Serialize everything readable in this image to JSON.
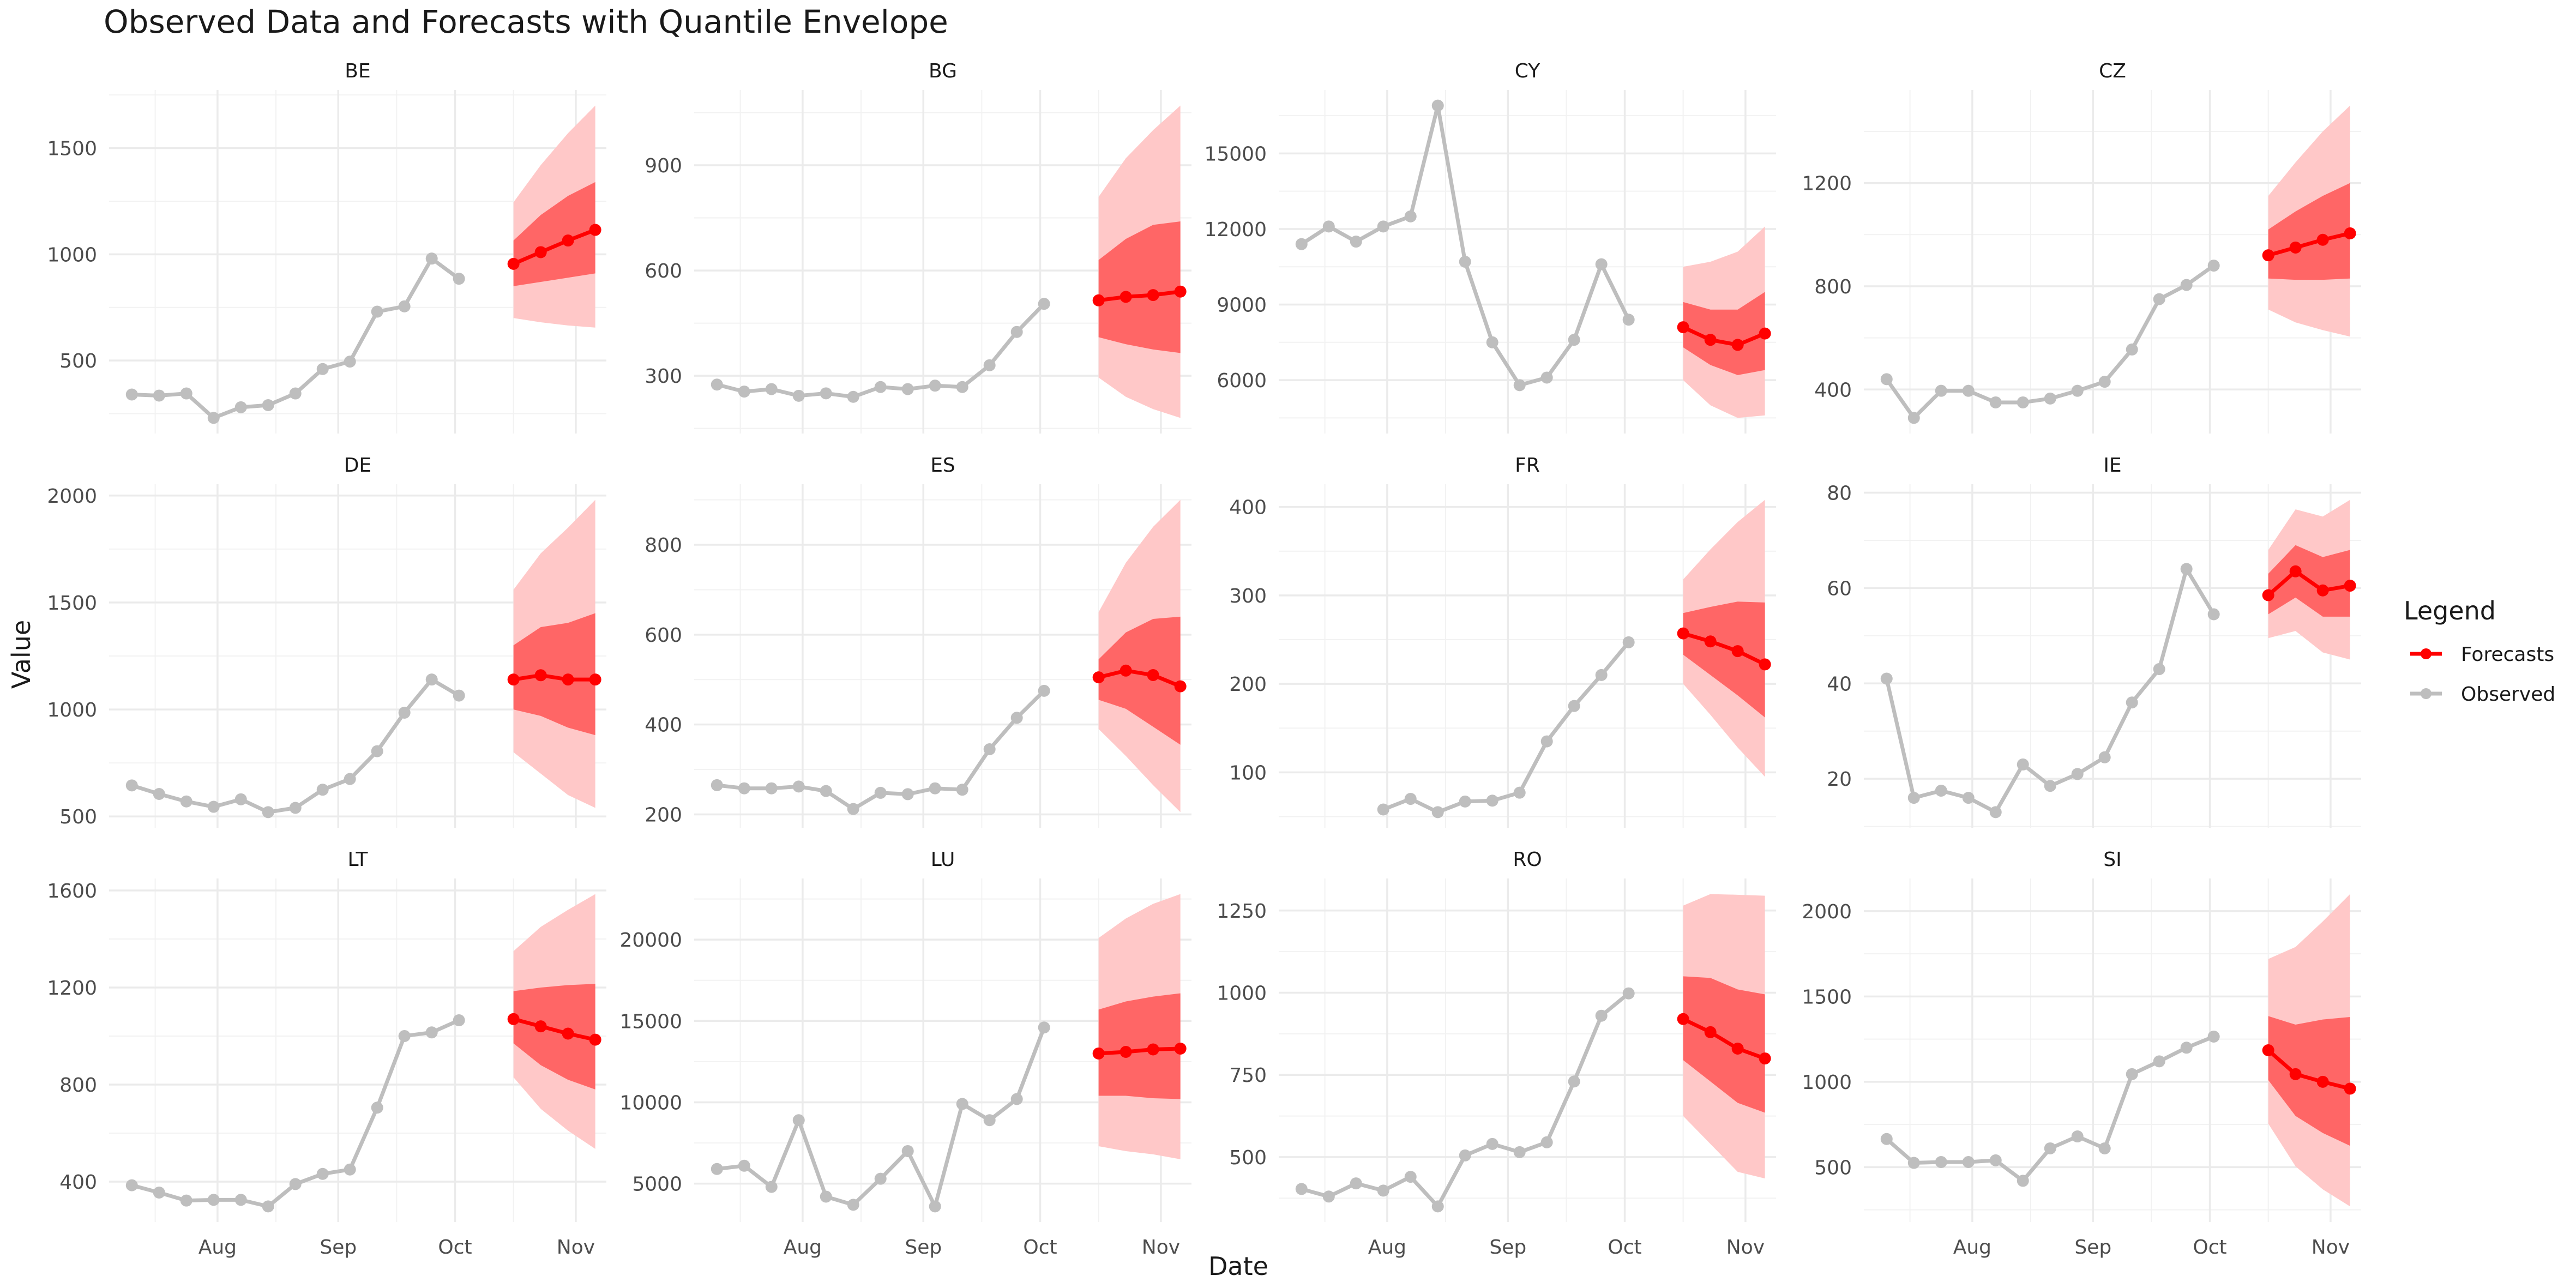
{
  "chart_data": {
    "type": "line",
    "title": "Observed Data and Forecasts with Quantile Envelope",
    "xlabel": "Date",
    "ylabel": "Value",
    "x_ticks": [
      "Aug",
      "Sep",
      "Oct",
      "Nov"
    ],
    "legend": {
      "title": "Legend",
      "position": "right",
      "entries": [
        {
          "label": "Forecasts",
          "color": "#ff0000"
        },
        {
          "label": "Observed",
          "color": "#bebebe"
        }
      ]
    },
    "colors": {
      "observed": "#bebebe",
      "forecast": "#ff0000",
      "inner_band": "#ff6666",
      "outer_band": "#ffc8c8"
    },
    "observed_dates": [
      "2023-07-10",
      "2023-07-17",
      "2023-07-24",
      "2023-07-31",
      "2023-08-07",
      "2023-08-14",
      "2023-08-21",
      "2023-08-28",
      "2023-09-04",
      "2023-09-11",
      "2023-09-18",
      "2023-09-25",
      "2023-10-02",
      "2023-10-09"
    ],
    "forecast_dates": [
      "2023-10-16",
      "2023-10-23",
      "2023-10-30",
      "2023-11-06"
    ],
    "panels": [
      {
        "name": "BE",
        "yticks": [
          500,
          1000,
          1500
        ],
        "observed": [
          340,
          335,
          345,
          230,
          280,
          290,
          345,
          460,
          495,
          730,
          755,
          980,
          885
        ],
        "observed_start": 0,
        "forecast": [
          955,
          1010,
          1065,
          1115
        ],
        "q_inner_lo": [
          850,
          870,
          890,
          910
        ],
        "q_inner_hi": [
          1065,
          1185,
          1275,
          1340
        ],
        "q_outer_lo": [
          700,
          680,
          665,
          655
        ],
        "q_outer_hi": [
          1245,
          1420,
          1570,
          1700
        ]
      },
      {
        "name": "BG",
        "yticks": [
          300,
          600,
          900
        ],
        "observed": [
          275,
          255,
          262,
          243,
          250,
          240,
          268,
          262,
          272,
          268,
          330,
          425,
          505
        ],
        "observed_start": 0,
        "forecast": [
          515,
          525,
          530,
          540
        ],
        "q_inner_lo": [
          410,
          390,
          375,
          365
        ],
        "q_inner_hi": [
          630,
          690,
          730,
          740
        ],
        "q_outer_lo": [
          295,
          240,
          205,
          180
        ],
        "q_outer_hi": [
          810,
          920,
          1000,
          1070
        ]
      },
      {
        "name": "CY",
        "yticks": [
          6000,
          9000,
          12000,
          15000
        ],
        "observed": [
          11400,
          12100,
          11500,
          12100,
          12500,
          16900,
          10700,
          7500,
          5800,
          6100,
          7600,
          10600,
          8400
        ],
        "observed_start": 0,
        "forecast": [
          8100,
          7600,
          7400,
          7850
        ],
        "q_inner_lo": [
          7300,
          6600,
          6200,
          6400
        ],
        "q_inner_hi": [
          9100,
          8800,
          8800,
          9500
        ],
        "q_outer_lo": [
          6000,
          5000,
          4500,
          4600
        ],
        "q_outer_hi": [
          10500,
          10700,
          11100,
          12100
        ]
      },
      {
        "name": "CZ",
        "yticks": [
          400,
          800,
          1200
        ],
        "observed": [
          440,
          290,
          395,
          395,
          350,
          350,
          365,
          395,
          430,
          555,
          750,
          805,
          880
        ],
        "observed_start": 0,
        "forecast": [
          920,
          950,
          980,
          1005
        ],
        "q_inner_lo": [
          830,
          825,
          825,
          830
        ],
        "q_inner_hi": [
          1020,
          1090,
          1150,
          1200
        ],
        "q_outer_lo": [
          710,
          660,
          630,
          605
        ],
        "q_outer_hi": [
          1150,
          1280,
          1400,
          1500
        ]
      },
      {
        "name": "DE",
        "yticks": [
          500,
          1000,
          1500,
          2000
        ],
        "observed": [
          645,
          605,
          570,
          545,
          580,
          520,
          540,
          625,
          675,
          805,
          985,
          1140,
          1065
        ],
        "observed_start": 0,
        "forecast": [
          1140,
          1160,
          1140,
          1140
        ],
        "q_inner_lo": [
          1000,
          970,
          915,
          880
        ],
        "q_inner_hi": [
          1300,
          1385,
          1405,
          1450
        ],
        "q_outer_lo": [
          800,
          700,
          600,
          540
        ],
        "q_outer_hi": [
          1560,
          1730,
          1850,
          1980
        ]
      },
      {
        "name": "ES",
        "yticks": [
          200,
          400,
          600,
          800
        ],
        "observed": [
          265,
          258,
          258,
          262,
          252,
          212,
          248,
          245,
          258,
          255,
          345,
          415,
          475
        ],
        "observed_start": 0,
        "forecast": [
          505,
          520,
          510,
          485
        ],
        "q_inner_lo": [
          455,
          435,
          395,
          355
        ],
        "q_inner_hi": [
          545,
          605,
          635,
          640
        ],
        "q_outer_lo": [
          390,
          330,
          265,
          205
        ],
        "q_outer_hi": [
          650,
          760,
          840,
          900
        ]
      },
      {
        "name": "FR",
        "yticks": [
          100,
          200,
          300,
          400
        ],
        "observed": [
          58,
          70,
          55,
          67,
          68,
          77,
          135,
          175,
          210,
          247
        ],
        "observed_start": 3,
        "forecast": [
          257,
          248,
          237,
          222
        ],
        "q_inner_lo": [
          233,
          210,
          187,
          162
        ],
        "q_inner_hi": [
          280,
          287,
          293,
          292
        ],
        "q_outer_lo": [
          200,
          165,
          128,
          95
        ],
        "q_outer_hi": [
          318,
          352,
          383,
          408
        ]
      },
      {
        "name": "IE",
        "yticks": [
          20,
          40,
          60,
          80
        ],
        "observed": [
          41,
          16,
          17.5,
          16,
          13,
          23,
          18.5,
          21,
          24.5,
          36,
          43,
          64,
          54.5
        ],
        "observed_start": 0,
        "forecast": [
          58.5,
          63.5,
          59.5,
          60.5
        ],
        "q_inner_lo": [
          54.5,
          58,
          54,
          54
        ],
        "q_inner_hi": [
          63,
          69,
          66.5,
          68
        ],
        "q_outer_lo": [
          49.5,
          51,
          46.5,
          45
        ],
        "q_outer_hi": [
          68,
          76.5,
          75,
          78.5
        ]
      },
      {
        "name": "LT",
        "yticks": [
          400,
          800,
          1200,
          1600
        ],
        "observed": [
          385,
          355,
          322,
          325,
          325,
          298,
          390,
          432,
          450,
          705,
          1000,
          1015,
          1065
        ],
        "observed_start": 0,
        "forecast": [
          1070,
          1040,
          1010,
          985
        ],
        "q_inner_lo": [
          970,
          880,
          820,
          780
        ],
        "q_inner_hi": [
          1185,
          1200,
          1210,
          1215
        ],
        "q_outer_lo": [
          830,
          700,
          610,
          535
        ],
        "q_outer_hi": [
          1350,
          1450,
          1520,
          1585
        ]
      },
      {
        "name": "LU",
        "yticks": [
          5000,
          10000,
          15000,
          20000
        ],
        "observed": [
          5900,
          6100,
          4800,
          8900,
          4200,
          3700,
          5300,
          7000,
          3600,
          9900,
          8900,
          10200,
          14600
        ],
        "observed_start": 0,
        "forecast": [
          13000,
          13100,
          13250,
          13300
        ],
        "q_inner_lo": [
          10400,
          10400,
          10250,
          10200
        ],
        "q_inner_hi": [
          15700,
          16200,
          16500,
          16700
        ],
        "q_outer_lo": [
          7300,
          7000,
          6800,
          6500
        ],
        "q_outer_hi": [
          20100,
          21300,
          22200,
          22800
        ]
      },
      {
        "name": "RO",
        "yticks": [
          500,
          750,
          1000,
          1250
        ],
        "observed": [
          403,
          380,
          420,
          398,
          440,
          350,
          505,
          540,
          515,
          545,
          730,
          930,
          998
        ],
        "observed_start": 0,
        "forecast": [
          920,
          880,
          830,
          800
        ],
        "q_inner_lo": [
          795,
          730,
          665,
          635
        ],
        "q_inner_hi": [
          1050,
          1045,
          1010,
          995
        ],
        "q_outer_lo": [
          625,
          540,
          455,
          435
        ],
        "q_outer_hi": [
          1265,
          1300,
          1298,
          1295
        ]
      },
      {
        "name": "SI",
        "yticks": [
          500,
          1000,
          1500,
          2000
        ],
        "observed": [
          665,
          525,
          530,
          530,
          540,
          420,
          610,
          680,
          610,
          1045,
          1120,
          1200,
          1265
        ],
        "observed_start": 0,
        "forecast": [
          1185,
          1045,
          1000,
          960
        ],
        "q_inner_lo": [
          1010,
          800,
          700,
          625
        ],
        "q_inner_hi": [
          1385,
          1335,
          1365,
          1380
        ],
        "q_outer_lo": [
          755,
          505,
          370,
          270
        ],
        "q_outer_hi": [
          1720,
          1790,
          1940,
          2100
        ]
      }
    ]
  }
}
